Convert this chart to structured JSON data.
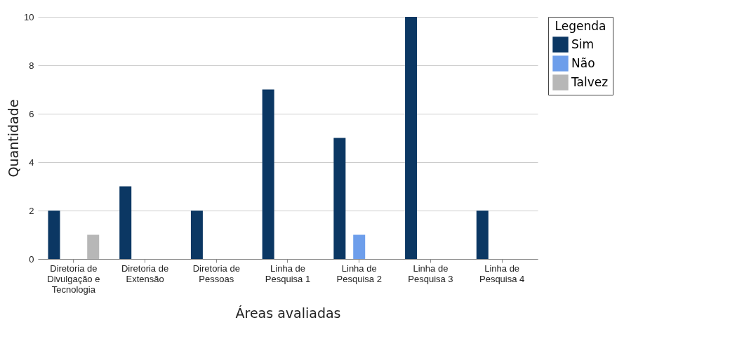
{
  "chart_data": {
    "type": "bar",
    "xlabel": "Áreas avaliadas",
    "ylabel": "Quantidade",
    "legend_title": "Legenda",
    "legend": "right",
    "categories": [
      "Diretoria de Divulgação e Tecnologia",
      "Diretoria de Extensão",
      "Diretoria de Pessoas",
      "Linha de Pesquisa 1",
      "Linha de Pesquisa 2",
      "Linha de Pesquisa 3",
      "Linha de Pesquisa 4"
    ],
    "series": [
      {
        "name": "Sim",
        "color": "#0b3763",
        "values": [
          2,
          3,
          2,
          7,
          5,
          10,
          2
        ]
      },
      {
        "name": "Não",
        "color": "#6d9eeb",
        "values": [
          0,
          0,
          0,
          0,
          1,
          0,
          0
        ]
      },
      {
        "name": "Talvez",
        "color": "#b7b7b7",
        "values": [
          1,
          0,
          0,
          0,
          0,
          0,
          0
        ]
      }
    ],
    "ylim": [
      0,
      10
    ],
    "yticks": [
      0,
      2,
      4,
      6,
      8,
      10
    ],
    "grid": "y"
  }
}
